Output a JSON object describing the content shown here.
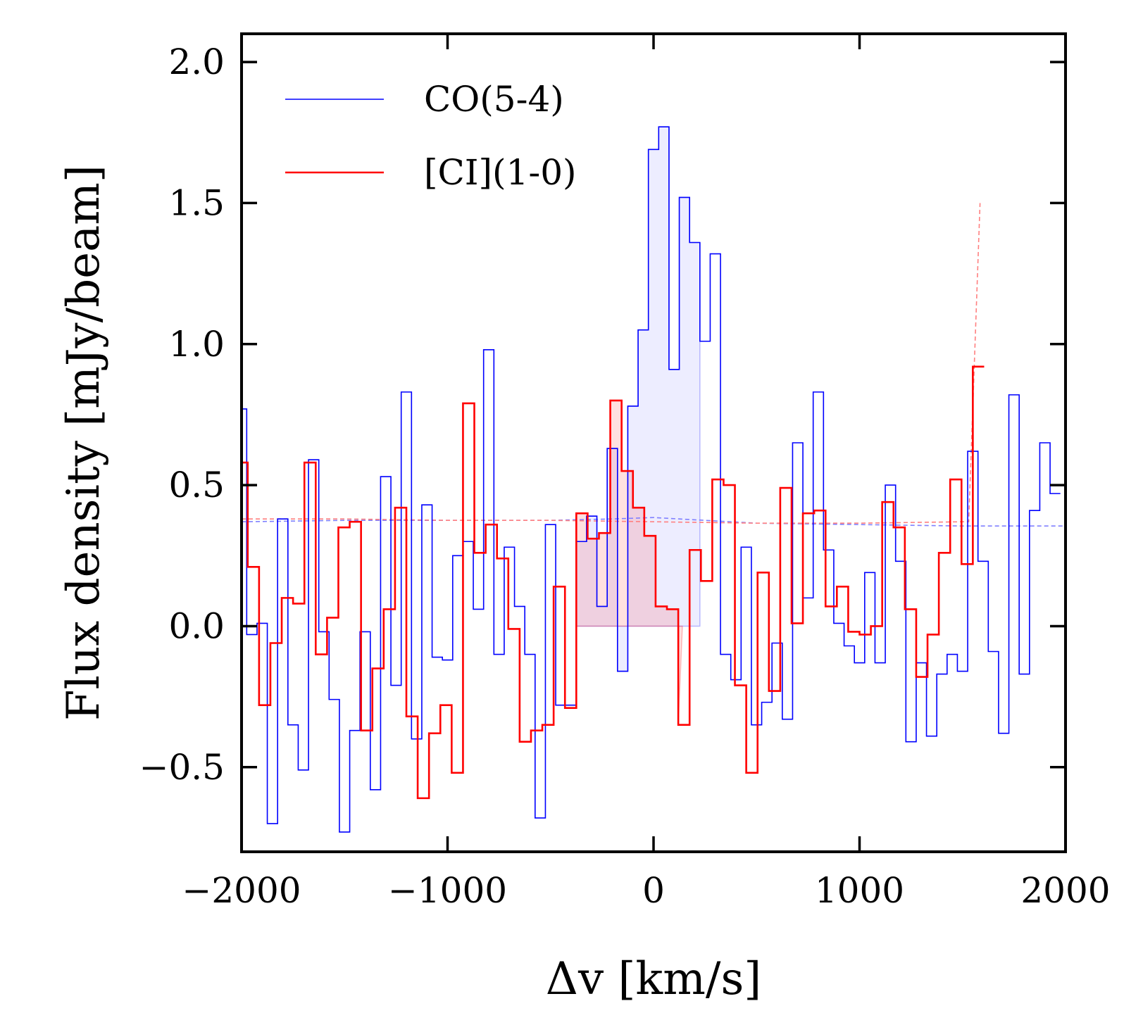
{
  "chart_data": {
    "type": "line",
    "step": true,
    "xlabel": "Δv [km/s]",
    "ylabel": "Flux density [mJy/beam]",
    "xlim": [
      -2000,
      2000
    ],
    "ylim": [
      -0.8,
      2.1
    ],
    "xticks": [
      -2000,
      -1000,
      0,
      1000,
      2000
    ],
    "xtick_labels": [
      "−2000",
      "−1000",
      "0",
      "1000",
      "2000"
    ],
    "yticks": [
      -0.5,
      0.0,
      0.5,
      1.0,
      1.5,
      2.0
    ],
    "ytick_labels": [
      "−0.5",
      "0.0",
      "0.5",
      "1.0",
      "1.5",
      "2.0"
    ],
    "grid": false,
    "legend_position": "upper-left",
    "series": [
      {
        "name": "CO(5-4)",
        "color": "#0000ff",
        "style": "step",
        "line_width": "thin",
        "bin_width": 50,
        "x_start": -2025,
        "values": [
          0.77,
          -0.03,
          0.01,
          -0.7,
          0.38,
          -0.35,
          -0.51,
          0.59,
          -0.02,
          -0.26,
          -0.73,
          -0.37,
          -0.02,
          -0.58,
          0.53,
          -0.21,
          0.83,
          -0.4,
          0.43,
          -0.11,
          -0.12,
          0.25,
          0.3,
          0.06,
          0.98,
          -0.1,
          0.28,
          0.07,
          -0.1,
          -0.68,
          0.36,
          -0.28,
          -0.28,
          0.3,
          0.39,
          0.07,
          0.63,
          -0.16,
          0.78,
          1.05,
          1.69,
          1.77,
          0.91,
          1.52,
          1.36,
          1.01,
          1.32,
          -0.1,
          -0.19,
          0.28,
          -0.35,
          -0.27,
          -0.06,
          -0.33,
          0.65,
          0.1,
          0.83,
          0.27,
          0.01,
          -0.07,
          -0.13,
          0.19,
          -0.13,
          0.5,
          0.23,
          -0.41,
          -0.13,
          -0.39,
          -0.17,
          -0.1,
          -0.16,
          0.62,
          0.23,
          -0.09,
          -0.38,
          0.82,
          -0.17,
          0.41,
          0.65,
          0.47
        ]
      },
      {
        "name": "[CI](1-0)",
        "color": "#ff0000",
        "style": "step",
        "line_width": "medium",
        "bin_width": 55,
        "x_start": -2025,
        "values": [
          0.58,
          0.21,
          -0.28,
          -0.06,
          0.1,
          0.08,
          0.58,
          -0.1,
          0.03,
          0.35,
          0.37,
          -0.37,
          -0.15,
          0.06,
          0.42,
          -0.32,
          -0.61,
          -0.38,
          -0.28,
          -0.52,
          0.79,
          0.26,
          0.36,
          0.24,
          -0.01,
          -0.41,
          -0.37,
          -0.35,
          0.14,
          -0.29,
          0.4,
          0.31,
          0.33,
          0.8,
          0.55,
          0.42,
          0.32,
          0.07,
          0.06,
          -0.35,
          0.27,
          0.16,
          0.52,
          0.5,
          -0.21,
          -0.52,
          0.19,
          -0.23,
          0.49,
          0.01,
          0.4,
          0.41,
          0.07,
          0.14,
          -0.02,
          -0.03,
          -0.0,
          0.44,
          0.35,
          0.06,
          -0.18,
          -0.03,
          0.26,
          0.52,
          0.22,
          0.92
        ]
      }
    ],
    "shaded_regions": [
      {
        "series": "CO(5-4)",
        "color": "#0000ff",
        "x_range": [
          -375,
          225
        ]
      },
      {
        "series": "[CI](1-0)",
        "color": "#ff0000",
        "x_range": [
          -375,
          140
        ]
      }
    ],
    "noise_lines": [
      {
        "series": "CO(5-4)",
        "color": "#8080ff",
        "style": "dashed",
        "points": [
          [
            -2000,
            0.37
          ],
          [
            -1500,
            0.375
          ],
          [
            -1000,
            0.375
          ],
          [
            -500,
            0.375
          ],
          [
            -200,
            0.38
          ],
          [
            0,
            0.385
          ],
          [
            500,
            0.365
          ],
          [
            1000,
            0.36
          ],
          [
            1500,
            0.355
          ],
          [
            2000,
            0.355
          ]
        ]
      },
      {
        "series": "[CI](1-0)",
        "color": "#ff8080",
        "style": "dashed",
        "points": [
          [
            -2000,
            0.38
          ],
          [
            -1500,
            0.38
          ],
          [
            -1000,
            0.375
          ],
          [
            -500,
            0.375
          ],
          [
            0,
            0.37
          ],
          [
            500,
            0.365
          ],
          [
            1000,
            0.365
          ],
          [
            1500,
            0.37
          ],
          [
            1530,
            0.37
          ],
          [
            1585,
            1.5
          ]
        ]
      }
    ]
  }
}
